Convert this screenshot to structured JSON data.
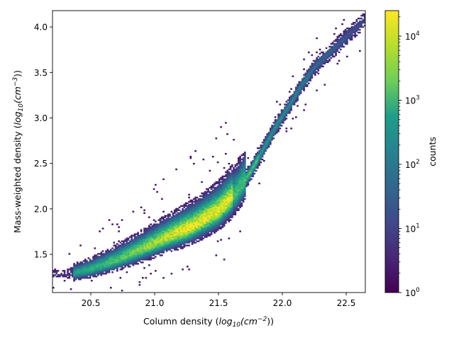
{
  "chart_data": {
    "type": "heatmap",
    "subtype": "2d-histogram",
    "title": "",
    "xlabel": "Column density (log10(cm^-2))",
    "ylabel": "Mass-weighted density (log10(cm^-3))",
    "xlim": [
      20.2,
      22.65
    ],
    "ylim": [
      1.08,
      4.18
    ],
    "x_ticks": [
      20.5,
      21.0,
      21.5,
      22.0,
      22.5
    ],
    "x_tick_labels": [
      "20.5",
      "21.0",
      "21.5",
      "22.0",
      "22.5"
    ],
    "y_ticks": [
      1.5,
      2.0,
      2.5,
      3.0,
      3.5,
      4.0
    ],
    "y_tick_labels": [
      "1.5",
      "2.0",
      "2.5",
      "3.0",
      "3.5",
      "4.0"
    ],
    "colormap": "viridis",
    "colorbar": {
      "label": "counts",
      "scale": "log",
      "range": [
        1,
        25000
      ],
      "tick_labels": [
        {
          "base": "10",
          "exp": "0",
          "value": 1
        },
        {
          "base": "10",
          "exp": "1",
          "value": 10
        },
        {
          "base": "10",
          "exp": "2",
          "value": 100
        },
        {
          "base": "10",
          "exp": "3",
          "value": 1000
        },
        {
          "base": "10",
          "exp": "4",
          "value": 10000
        }
      ]
    },
    "ridge": [
      {
        "x": 20.35,
        "y": 1.28
      },
      {
        "x": 20.5,
        "y": 1.33
      },
      {
        "x": 20.7,
        "y": 1.43
      },
      {
        "x": 20.9,
        "y": 1.55
      },
      {
        "x": 21.1,
        "y": 1.68
      },
      {
        "x": 21.3,
        "y": 1.8
      },
      {
        "x": 21.5,
        "y": 1.97
      },
      {
        "x": 21.65,
        "y": 2.18
      },
      {
        "x": 21.75,
        "y": 2.4
      },
      {
        "x": 21.85,
        "y": 2.65
      },
      {
        "x": 21.95,
        "y": 2.9
      },
      {
        "x": 22.05,
        "y": 3.12
      },
      {
        "x": 22.15,
        "y": 3.35
      },
      {
        "x": 22.25,
        "y": 3.55
      },
      {
        "x": 22.4,
        "y": 3.75
      },
      {
        "x": 22.55,
        "y": 3.95
      },
      {
        "x": 22.65,
        "y": 4.08
      }
    ],
    "peak_counts": 25000
  }
}
